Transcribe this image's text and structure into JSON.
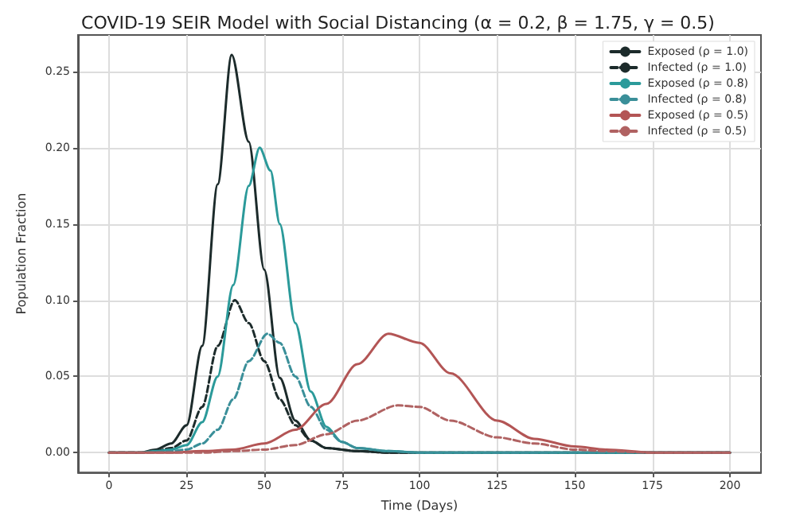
{
  "chart_data": {
    "type": "line",
    "title": "COVID-19 SEIR Model with Social Distancing (α = 0.2, β = 1.75, γ = 0.5)",
    "xlabel": "Time (Days)",
    "ylabel": "Population Fraction",
    "xlim": [
      -10,
      210
    ],
    "xticks": [
      0,
      25,
      50,
      75,
      100,
      125,
      150,
      175,
      200
    ],
    "ylim": [
      -0.013,
      0.274
    ],
    "yticks": [
      {
        "value": 0,
        "label": "0.00"
      },
      {
        "value": 0.05,
        "label": "0.05"
      },
      {
        "value": 0.1,
        "label": "0.10"
      },
      {
        "value": 0.15,
        "label": "0.15"
      },
      {
        "value": 0.2,
        "label": "0.20"
      },
      {
        "value": 0.25,
        "label": "0.25"
      }
    ],
    "grid": true,
    "legend": "top right",
    "marker": "none",
    "series": [
      {
        "name": "Exposed (ρ = 1.0)",
        "color": "#1c2b2b",
        "line_style": "solid",
        "x": [
          0,
          10,
          15,
          20,
          25,
          30,
          35,
          39.5,
          45,
          50,
          55,
          60,
          65,
          70,
          80,
          90,
          100,
          125,
          150,
          175,
          200
        ],
        "values": [
          0,
          0,
          0.002,
          0.006,
          0.018,
          0.07,
          0.176,
          0.261,
          0.204,
          0.12,
          0.049,
          0.021,
          0.008,
          0.003,
          0.001,
          0,
          0,
          0,
          0,
          0,
          0
        ]
      },
      {
        "name": "Infected (ρ = 1.0)",
        "color": "#1c2b2b",
        "line_style": "dashed",
        "x": [
          0,
          10,
          15,
          20,
          25,
          30,
          35,
          40.5,
          45,
          50,
          55,
          60,
          65,
          70,
          80,
          90,
          100,
          125,
          150,
          175,
          200
        ],
        "values": [
          0,
          0,
          0.001,
          0.003,
          0.008,
          0.03,
          0.07,
          0.1,
          0.085,
          0.06,
          0.035,
          0.018,
          0.008,
          0.003,
          0.001,
          0,
          0,
          0,
          0,
          0,
          0
        ]
      },
      {
        "name": "Exposed (ρ = 0.8)",
        "color": "#2b9a9a",
        "line_style": "solid",
        "x": [
          0,
          10,
          15,
          20,
          25,
          30,
          35,
          40,
          45,
          48.5,
          52,
          55,
          60,
          65,
          70,
          75,
          80,
          90,
          100,
          125,
          150,
          175,
          200
        ],
        "values": [
          0,
          0,
          0.001,
          0.002,
          0.005,
          0.02,
          0.05,
          0.11,
          0.175,
          0.2,
          0.185,
          0.15,
          0.085,
          0.04,
          0.017,
          0.007,
          0.003,
          0.001,
          0,
          0,
          0,
          0,
          0
        ]
      },
      {
        "name": "Infected (ρ = 0.8)",
        "color": "#3a8f99",
        "line_style": "dashed",
        "x": [
          0,
          10,
          20,
          25,
          30,
          35,
          40,
          45,
          51,
          55,
          60,
          65,
          70,
          75,
          80,
          90,
          100,
          125,
          150,
          175,
          200
        ],
        "values": [
          0,
          0,
          0.001,
          0.002,
          0.006,
          0.015,
          0.035,
          0.06,
          0.078,
          0.072,
          0.05,
          0.03,
          0.015,
          0.007,
          0.003,
          0.001,
          0,
          0,
          0,
          0,
          0
        ]
      },
      {
        "name": "Exposed (ρ = 0.5)",
        "color": "#b35555",
        "line_style": "solid",
        "x": [
          0,
          10,
          20,
          30,
          40,
          50,
          60,
          70,
          80,
          90,
          100,
          110,
          125,
          137,
          150,
          160,
          175,
          200
        ],
        "values": [
          0,
          0,
          0,
          0.001,
          0.002,
          0.006,
          0.015,
          0.032,
          0.058,
          0.078,
          0.072,
          0.052,
          0.021,
          0.009,
          0.004,
          0.002,
          0,
          0
        ]
      },
      {
        "name": "Infected (ρ = 0.5)",
        "color": "#b06262",
        "line_style": "dashed",
        "x": [
          0,
          10,
          20,
          30,
          40,
          50,
          60,
          70,
          80,
          93,
          100,
          110,
          125,
          137,
          150,
          160,
          175,
          200
        ],
        "values": [
          0,
          0,
          0,
          0,
          0.001,
          0.002,
          0.005,
          0.012,
          0.021,
          0.031,
          0.03,
          0.021,
          0.01,
          0.006,
          0.002,
          0.001,
          0,
          0
        ]
      }
    ]
  }
}
